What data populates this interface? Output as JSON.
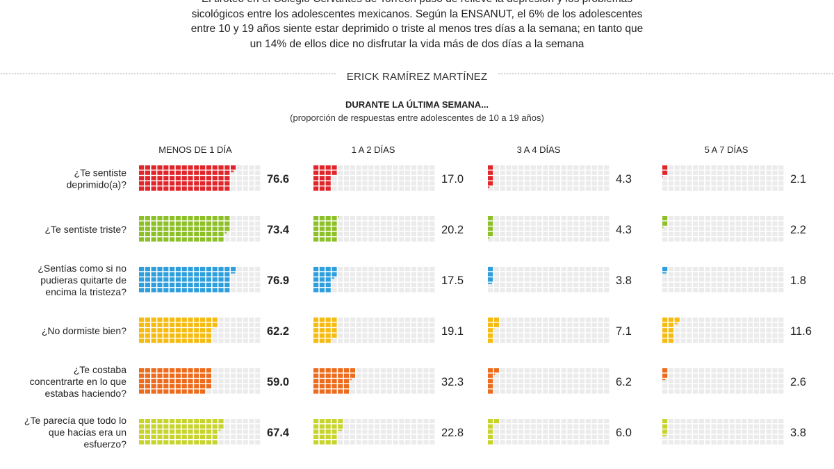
{
  "intro": [
    "El tiroteo en el Colegio Cervantes de Torreón puso de relieve la depresión y los problemas",
    "sicológicos entre los adolescentes mexicanos. Según la ENSANUT, el 6% de los adolescentes",
    "entre 10 y 19 años siente estar deprimido o triste al menos tres días a la semana; en tanto que",
    "un 14% de ellos dice no disfrutar la vida más de dos días a la semana"
  ],
  "byline": "ERICK RAMÍREZ MARTÍNEZ",
  "subtitle": "DURANTE LA ÚLTIMA SEMANA...",
  "note": "(proporción de respuestas entre adolescentes de 10 a 19 años)",
  "chart_data": {
    "type": "waffle",
    "grid": "10x10 squares per cell, one square = 1%",
    "categories": [
      "MENOS DE 1 DÍA",
      "1 A 2 DÍAS",
      "3 A 4 DÍAS",
      "5 A 7 DÍAS"
    ],
    "rows": [
      {
        "label": "¿Te sentiste deprimido(a)?",
        "color": "#e0262b",
        "values": [
          76.6,
          17.0,
          4.3,
          2.1
        ],
        "value_labels": [
          "76.6",
          "17.0",
          "4.3",
          "2.1"
        ]
      },
      {
        "label": "¿Te sentiste triste?",
        "color": "#8dbf26",
        "values": [
          73.4,
          20.2,
          4.3,
          2.2
        ],
        "value_labels": [
          "73.4",
          "20.2",
          "4.3",
          "2.2"
        ]
      },
      {
        "label": "¿Sentías como si no pudieras quitarte de encima la tristeza?",
        "color": "#2e9fdc",
        "values": [
          76.9,
          17.5,
          3.8,
          1.8
        ],
        "value_labels": [
          "76.9",
          "17.5",
          "3.8",
          "1.8"
        ]
      },
      {
        "label": "¿No dormiste bien?",
        "color": "#f5bb11",
        "values": [
          62.2,
          19.1,
          7.1,
          11.6
        ],
        "value_labels": [
          "62.2",
          "19.1",
          "7.1",
          "11.6"
        ]
      },
      {
        "label": "¿Te costaba concentrarte en lo que estabas haciendo?",
        "color": "#ec6b1c",
        "values": [
          59.0,
          32.3,
          6.2,
          2.6
        ],
        "value_labels": [
          "59.0",
          "32.3",
          "6.2",
          "2.6"
        ]
      },
      {
        "label": "¿Te parecía que todo lo que hacías era un esfuerzo?",
        "color": "#c8d42e",
        "values": [
          67.4,
          22.8,
          6.0,
          3.8
        ],
        "value_labels": [
          "67.4",
          "22.8",
          "6.0",
          "3.8"
        ]
      }
    ],
    "label_lines": [
      [
        "¿Te sentiste",
        "deprimido(a)?"
      ],
      [
        "¿Te sentiste triste?"
      ],
      [
        "¿Sentías como si no",
        "pudieras quitarte de",
        "encima la tristeza?"
      ],
      [
        "¿No dormiste bien?"
      ],
      [
        "¿Te costaba",
        "concentrarte en lo que",
        "estabas haciendo?"
      ],
      [
        "¿Te parecía que todo lo",
        "que hacías era un",
        "esfuerzo?"
      ]
    ],
    "empty_color": "#ebebeb"
  }
}
